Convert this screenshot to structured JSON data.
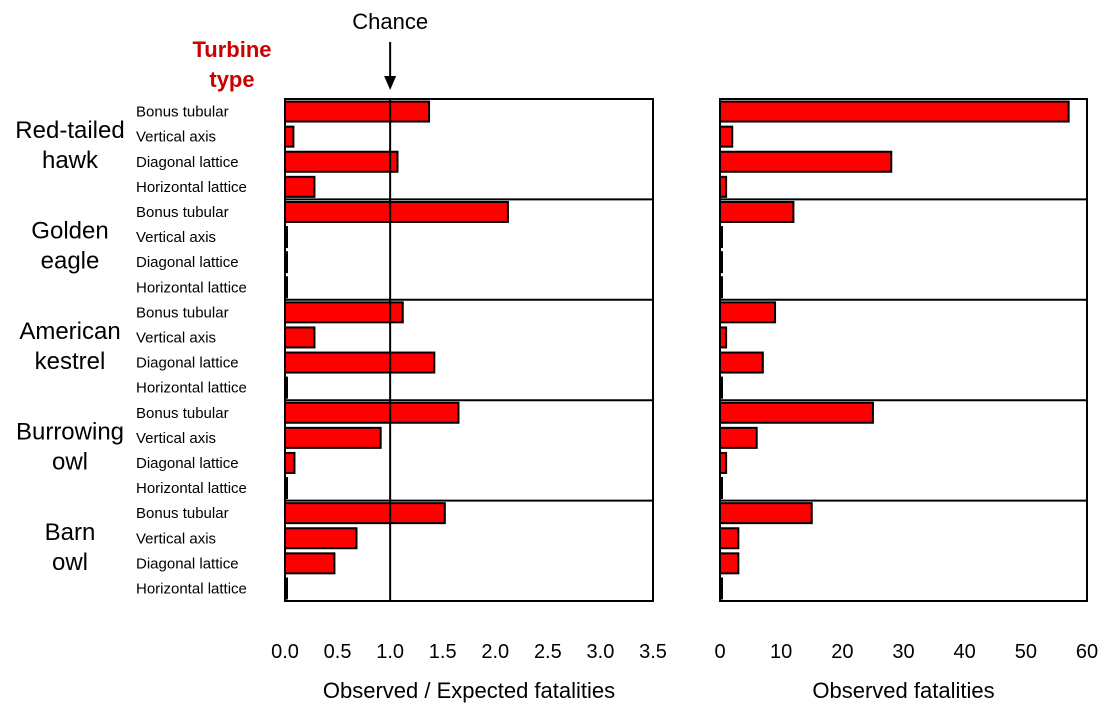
{
  "chart_data": {
    "type": "bar",
    "orientation": "horizontal",
    "legend_title": "Turbine type",
    "turbine_types": [
      "Bonus tubular",
      "Vertical axis",
      "Diagonal lattice",
      "Horizontal lattice"
    ],
    "species": [
      {
        "name": "Red-tailed hawk",
        "label_lines": [
          "Red-tailed",
          "hawk"
        ],
        "ratio": [
          1.37,
          0.08,
          1.07,
          0.28
        ],
        "observed": [
          57,
          2,
          28,
          1
        ]
      },
      {
        "name": "Golden eagle",
        "label_lines": [
          "Golden",
          "eagle"
        ],
        "ratio": [
          2.12,
          0,
          0,
          0
        ],
        "observed": [
          12,
          0,
          0,
          0
        ]
      },
      {
        "name": "American kestrel",
        "label_lines": [
          "American",
          "kestrel"
        ],
        "ratio": [
          1.12,
          0.28,
          1.42,
          0
        ],
        "observed": [
          9,
          1,
          7,
          0
        ]
      },
      {
        "name": "Burrowing owl",
        "label_lines": [
          "Burrowing",
          "owl"
        ],
        "ratio": [
          1.65,
          0.91,
          0.09,
          0
        ],
        "observed": [
          25,
          6,
          1,
          0
        ]
      },
      {
        "name": "Barn owl",
        "label_lines": [
          "Barn",
          "owl"
        ],
        "ratio": [
          1.52,
          0.68,
          0.47,
          0
        ],
        "observed": [
          15,
          3,
          3,
          0
        ]
      }
    ],
    "panels": [
      {
        "id": "ratio",
        "xlabel": "Observed / Expected fatalities",
        "xlim": [
          0,
          3.5
        ],
        "ticks": [
          0,
          0.5,
          1,
          1.5,
          2,
          2.5,
          3,
          3.5
        ],
        "tick_labels": [
          "0.0",
          "0.5",
          "1.0",
          "1.5",
          "2.0",
          "2.5",
          "3.0",
          "3.5"
        ],
        "reference_line": {
          "value": 1.0,
          "label": "Chance"
        }
      },
      {
        "id": "observed",
        "xlabel": "Observed fatalities",
        "xlim": [
          0,
          60
        ],
        "ticks": [
          0,
          10,
          20,
          30,
          40,
          50,
          60
        ],
        "tick_labels": [
          "0",
          "10",
          "20",
          "30",
          "40",
          "50",
          "60"
        ]
      }
    ],
    "bar_color": "#ff0000",
    "bar_edge_color": "#000000",
    "label_color": "#cc0000",
    "grid": false
  }
}
